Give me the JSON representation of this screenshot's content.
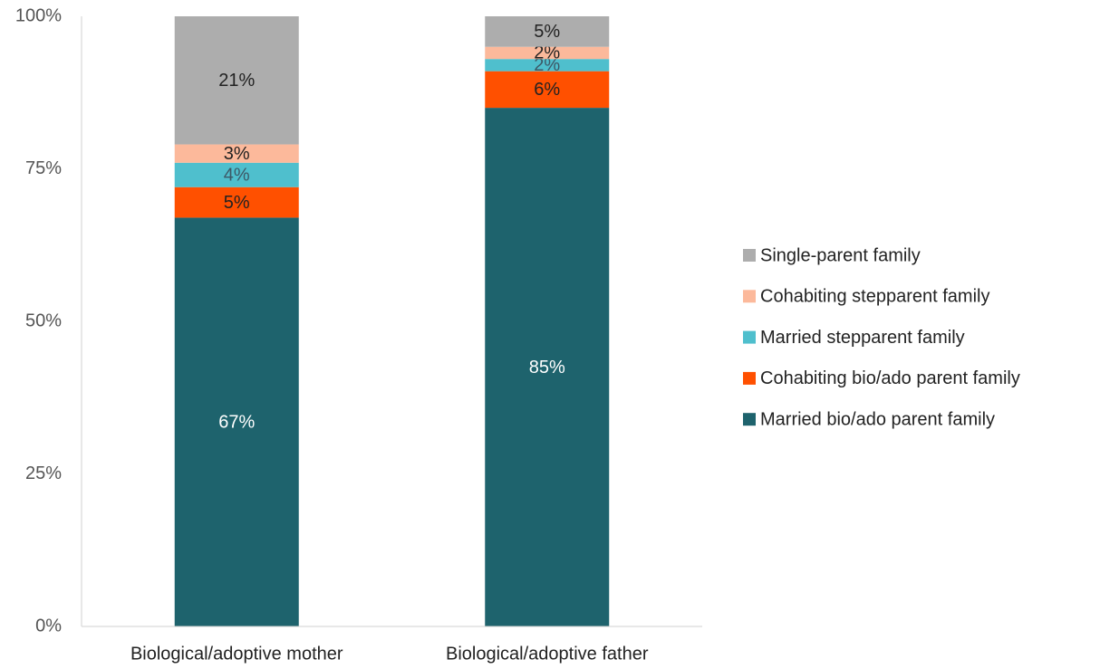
{
  "chart_data": {
    "type": "stacked_bar",
    "categories": [
      "Biological/adoptive mother",
      "Biological/adoptive father"
    ],
    "series": [
      {
        "name": "Married bio/ado parent family",
        "color": "#1e636d",
        "label_color": "#ffffff",
        "values": [
          67,
          85
        ],
        "value_labels": [
          "67%",
          "85%"
        ]
      },
      {
        "name": "Cohabiting bio/ado parent family",
        "color": "#ff5000",
        "label_color": "#222222",
        "values": [
          5,
          6
        ],
        "value_labels": [
          "5%",
          "6%"
        ]
      },
      {
        "name": "Married stepparent family",
        "color": "#4fbfcd",
        "label_color": "#3d5866",
        "values": [
          4,
          2
        ],
        "value_labels": [
          "4%",
          "2%"
        ]
      },
      {
        "name": "Cohabiting stepparent family",
        "color": "#fcb99b",
        "label_color": "#222222",
        "values": [
          3,
          2
        ],
        "value_labels": [
          "3%",
          "2%"
        ]
      },
      {
        "name": "Single-parent family",
        "color": "#adadad",
        "label_color": "#222222",
        "values": [
          21,
          5
        ],
        "value_labels": [
          "21%",
          "5%"
        ]
      }
    ],
    "ylim": [
      0,
      100
    ],
    "yticks": [
      {
        "value": 0,
        "label": "0%"
      },
      {
        "value": 25,
        "label": "25%"
      },
      {
        "value": 50,
        "label": "50%"
      },
      {
        "value": 75,
        "label": "75%"
      },
      {
        "value": 100,
        "label": "100%"
      }
    ],
    "grid": false,
    "legend": "right"
  }
}
